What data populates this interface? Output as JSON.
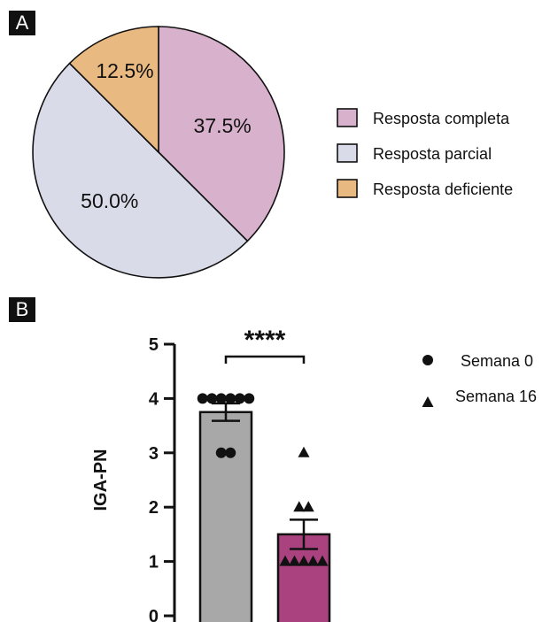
{
  "panels": {
    "a_tag": "A",
    "b_tag": "B"
  },
  "chart_data": [
    {
      "type": "pie",
      "title": "",
      "slices": [
        {
          "label": "Resposta completa",
          "value": 37.5,
          "display": "37.5%",
          "color": "#d8b2cc"
        },
        {
          "label": "Resposta parcial",
          "value": 50.0,
          "display": "50.0%",
          "color": "#d9dbe8"
        },
        {
          "label": "Resposta deficiente",
          "value": 12.5,
          "display": "12.5%",
          "color": "#e9b982"
        }
      ],
      "legend": "right"
    },
    {
      "type": "bar",
      "title": "",
      "ylabel": "IGA-PN",
      "xlabel": "",
      "ylim": [
        0,
        5
      ],
      "yticks": [
        "0",
        "1",
        "2",
        "3",
        "4",
        "5"
      ],
      "grid": false,
      "legend": "right",
      "significance": "****",
      "series": [
        {
          "name": "Semana 0",
          "marker": "circle",
          "bar_color": "#a8a8a8",
          "mean": 3.75,
          "sem": 0.16,
          "points": [
            4,
            4,
            4,
            4,
            4,
            4,
            3,
            3
          ]
        },
        {
          "name": "Semana 16",
          "marker": "triangle",
          "bar_color": "#a9427f",
          "mean": 1.5,
          "sem": 0.27,
          "points": [
            1,
            1,
            1,
            1,
            1,
            2,
            2,
            3
          ]
        }
      ]
    }
  ]
}
